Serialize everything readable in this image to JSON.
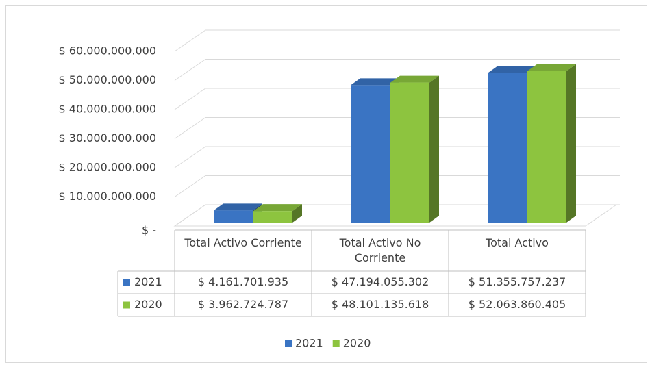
{
  "chart_data": {
    "type": "bar3d",
    "categories": [
      "Total Activo Corriente",
      "Total Activo No Corriente",
      "Total Activo"
    ],
    "series": [
      {
        "name": "2021",
        "color": "#3a74c3",
        "values": [
          4161701935,
          47194055302,
          51355757237
        ],
        "value_labels": [
          "$ 4.161.701.935",
          "$ 47.194.055.302",
          "$ 51.355.757.237"
        ]
      },
      {
        "name": "2020",
        "color": "#8dc43f",
        "values": [
          3962724787,
          48101135618,
          52063860405
        ],
        "value_labels": [
          "$ 3.962.724.787",
          "$ 48.101.135.618",
          "$ 52.063.860.405"
        ]
      }
    ],
    "ylim": [
      0,
      60000000000
    ],
    "yticks": [
      {
        "value": 0,
        "label": "$ -"
      },
      {
        "value": 10000000000,
        "label": "$ 10.000.000.000"
      },
      {
        "value": 20000000000,
        "label": "$ 20.000.000.000"
      },
      {
        "value": 30000000000,
        "label": "$ 30.000.000.000"
      },
      {
        "value": 40000000000,
        "label": "$ 40.000.000.000"
      },
      {
        "value": 50000000000,
        "label": "$ 50.000.000.000"
      },
      {
        "value": 60000000000,
        "label": "$ 60.000.000.000"
      }
    ],
    "grid": true,
    "legend": "bottom",
    "data_table": true
  }
}
